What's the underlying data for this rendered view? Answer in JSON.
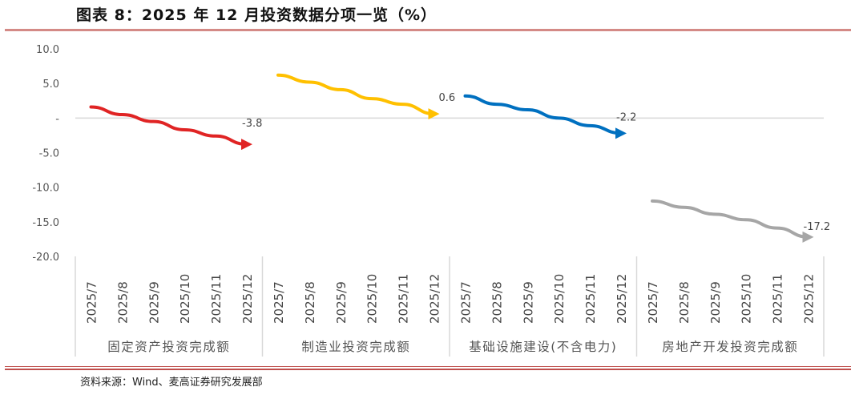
{
  "title": "图表 8：2025 年 12 月投资数据分项一览（%）",
  "source": "资料来源：Wind、麦高证券研究发展部",
  "chart_data": {
    "type": "line",
    "title": "图表 8：2025 年 12 月投资数据分项一览（%）",
    "ylim": [
      -20,
      10
    ],
    "yticks": [
      10,
      5,
      0,
      -5,
      -10,
      -15,
      -20
    ],
    "ytick_labels": [
      "10.0",
      "5.0",
      "-",
      "-5.0",
      "-10.0",
      "-15.0",
      "-20.0"
    ],
    "grid": false,
    "categories": [
      "2025/7",
      "2025/8",
      "2025/9",
      "2025/10",
      "2025/11",
      "2025/12"
    ],
    "panels": [
      {
        "name": "固定资产投资完成额",
        "color": "#e02424",
        "values": [
          1.6,
          0.5,
          -0.5,
          -1.7,
          -2.6,
          -3.8
        ],
        "end_label": "-3.8"
      },
      {
        "name": "制造业投资完成额",
        "color": "#ffc000",
        "values": [
          6.2,
          5.2,
          4.1,
          2.8,
          2.0,
          0.6
        ],
        "end_label": "0.6"
      },
      {
        "name": "基础设施建设(不含电力)",
        "color": "#0070c0",
        "values": [
          3.2,
          2.0,
          1.2,
          0.0,
          -1.1,
          -2.2
        ],
        "end_label": "-2.2"
      },
      {
        "name": "房地产开发投资完成额",
        "color": "#a6a6a6",
        "values": [
          -12.0,
          -12.9,
          -13.9,
          -14.7,
          -15.9,
          -17.2
        ],
        "end_label": "-17.2"
      }
    ]
  }
}
